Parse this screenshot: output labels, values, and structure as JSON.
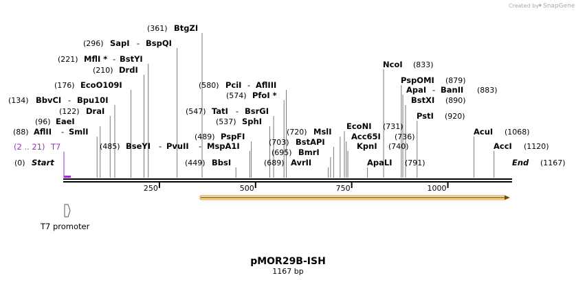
{
  "credit": {
    "prefix": "Created by",
    "brand": "SnapGene"
  },
  "map": {
    "title": "pMOR29B-ISH",
    "length_label": "1167 bp",
    "start_label": "Start",
    "end_label": "End",
    "start_pos": "(0)",
    "end_pos": "(1167)",
    "length": 1167,
    "axis_ticks": [
      {
        "value": 250,
        "label": "250"
      },
      {
        "value": 500,
        "label": "500"
      },
      {
        "value": 750,
        "label": "750"
      },
      {
        "value": 1000,
        "label": "1000"
      }
    ]
  },
  "features": {
    "t7_label": "T7",
    "t7_range": "(2 .. 21)",
    "t7_promoter_label": "T7 promoter",
    "orf_color": "#f5a623"
  },
  "sites": [
    {
      "name": "AflII",
      "name2": "SmlI",
      "pos": "(88)",
      "bp": 88
    },
    {
      "name": "EaeI",
      "pos": "(96)",
      "bp": 96
    },
    {
      "name": "DraI",
      "pos": "(122)",
      "bp": 122
    },
    {
      "name": "BbvCI",
      "name2": "Bpu10I",
      "pos": "(134)",
      "bp": 134
    },
    {
      "name": "EcoO109I",
      "pos": "(176)",
      "bp": 176
    },
    {
      "name": "DrdI",
      "pos": "(210)",
      "bp": 210
    },
    {
      "name": "MflI *",
      "name2": "BstYI",
      "pos": "(221)",
      "bp": 221
    },
    {
      "name": "SapI",
      "name2": "BspQI",
      "pos": "(296)",
      "bp": 296
    },
    {
      "name": "BtgZI",
      "pos": "(361)",
      "bp": 361
    },
    {
      "name": "BbsI",
      "pos": "(449)",
      "bp": 449
    },
    {
      "name": "BseYI",
      "name2": "PvuII",
      "name3": "MspA1I",
      "pos": "(485)",
      "bp": 485
    },
    {
      "name": "PspFI",
      "pos": "(489)",
      "bp": 489
    },
    {
      "name": "SphI",
      "pos": "(537)",
      "bp": 537
    },
    {
      "name": "TatI",
      "name2": "BsrGI",
      "pos": "(547)",
      "bp": 547
    },
    {
      "name": "PfoI *",
      "pos": "(574)",
      "bp": 574
    },
    {
      "name": "PciI",
      "name2": "AflIII",
      "pos": "(580)",
      "bp": 580
    },
    {
      "name": "AvrII",
      "pos": "(689)",
      "bp": 689
    },
    {
      "name": "BmrI",
      "pos": "(695)",
      "bp": 695
    },
    {
      "name": "BstAPI",
      "pos": "(703)",
      "bp": 703
    },
    {
      "name": "MslI",
      "pos": "(720)",
      "bp": 720
    },
    {
      "name": "EcoNI",
      "pos": "(731)",
      "bp": 731
    },
    {
      "name": "Acc65I",
      "pos": "(736)",
      "bp": 736
    },
    {
      "name": "KpnI",
      "pos": "(740)",
      "bp": 740
    },
    {
      "name": "ApaLI",
      "pos": "(791)",
      "bp": 791
    },
    {
      "name": "NcoI",
      "pos": "(833)",
      "bp": 833
    },
    {
      "name": "PspOMI",
      "pos": "(879)",
      "bp": 879
    },
    {
      "name": "ApaI",
      "name2": "BanII",
      "pos": "(883)",
      "bp": 883
    },
    {
      "name": "BstXI",
      "pos": "(890)",
      "bp": 890
    },
    {
      "name": "PstI",
      "pos": "(920)",
      "bp": 920
    },
    {
      "name": "AcuI",
      "pos": "(1068)",
      "bp": 1068
    },
    {
      "name": "AccI",
      "pos": "(1120)",
      "bp": 1120
    }
  ]
}
